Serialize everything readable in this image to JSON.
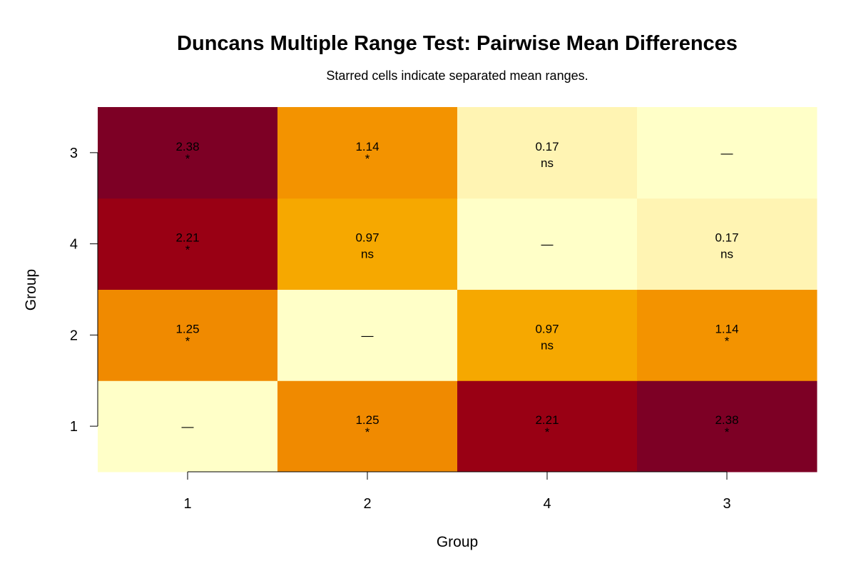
{
  "chart_data": {
    "type": "heatmap",
    "title": "Duncans Multiple Range Test: Pairwise Mean Differences",
    "subtitle": "Starred cells indicate separated mean ranges.",
    "xlabel": "Group",
    "ylabel": "Group",
    "x_categories": [
      "1",
      "2",
      "4",
      "3"
    ],
    "y_categories": [
      "1",
      "2",
      "4",
      "3"
    ],
    "values": [
      [
        null,
        1.25,
        2.21,
        2.38
      ],
      [
        1.25,
        null,
        0.97,
        1.14
      ],
      [
        2.21,
        0.97,
        null,
        0.17
      ],
      [
        2.38,
        1.14,
        0.17,
        null
      ]
    ],
    "labels": [
      [
        "—",
        "1.25",
        "2.21",
        "2.38"
      ],
      [
        "1.25",
        "—",
        "0.97",
        "1.14"
      ],
      [
        "2.21",
        "0.97",
        "—",
        "0.17"
      ],
      [
        "2.38",
        "1.14",
        "0.17",
        "—"
      ]
    ],
    "significance": [
      [
        "",
        "*",
        "*",
        "*"
      ],
      [
        "*",
        "",
        "ns",
        "*"
      ],
      [
        "*",
        "ns",
        "",
        "ns"
      ],
      [
        "*",
        "*",
        "ns",
        ""
      ]
    ],
    "color_scale": {
      "stops": [
        "#FFFFC8",
        "#FFF4B3",
        "#F6A800",
        "#F39300",
        "#F08A00",
        "#990014",
        "#7D0025"
      ],
      "stop_values": [
        0,
        0.17,
        0.97,
        1.14,
        1.25,
        2.21,
        2.38
      ]
    }
  }
}
